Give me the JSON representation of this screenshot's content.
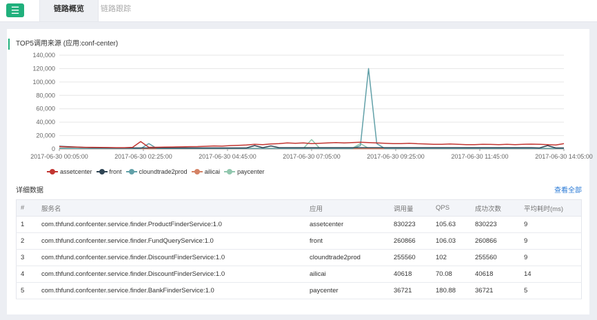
{
  "header": {
    "menu_icon": "☰",
    "tabs": [
      {
        "label": "链路概览",
        "active": true
      },
      {
        "label": "链路跟踪",
        "active": false
      }
    ]
  },
  "accent_color": "#20b07c",
  "link_color": "#2a7ad6",
  "chart_title": "TOP5调用来源 (应用:conf-center)",
  "chart_data": {
    "type": "line",
    "title": "TOP5调用来源 (应用:conf-center)",
    "ylim": [
      0,
      140000
    ],
    "y_ticks": [
      "140,000",
      "120,000",
      "100,000",
      "80,000",
      "60,000",
      "40,000",
      "20,000",
      "0"
    ],
    "x_ticks": [
      "2017-06-30 00:05:00",
      "2017-06-30 02:25:00",
      "2017-06-30 04:45:00",
      "2017-06-30 07:05:00",
      "2017-06-30 09:25:00",
      "2017-06-30 11:45:00",
      "2017-06-30 14:05:00"
    ],
    "grid": true,
    "legend_position": "bottom-left",
    "series": [
      {
        "name": "assetcenter",
        "color": "#c23531",
        "values": [
          3500,
          3000,
          2800,
          2500,
          2500,
          2400,
          2200,
          2000,
          2000,
          2500,
          11000,
          2500,
          2600,
          2800,
          3000,
          3200,
          3500,
          3600,
          4000,
          4500,
          4200,
          5000,
          5500,
          6000,
          7000,
          6500,
          7500,
          8000,
          9000,
          8500,
          9000,
          8000,
          8500,
          9000,
          9500,
          9000,
          9500,
          10000,
          9500,
          9000,
          8500,
          8000,
          8000,
          8500,
          7800,
          7500,
          7000,
          7000,
          7500,
          7000,
          6500,
          6500,
          7000,
          6800,
          6500,
          7000,
          6500,
          7000,
          7200,
          7000,
          6500,
          6000,
          8000
        ]
      },
      {
        "name": "front",
        "color": "#2f4554",
        "values": [
          4000,
          3500,
          3000,
          2500,
          2000,
          1800,
          1600,
          1500,
          1500,
          1500,
          1500,
          1500,
          1500,
          1500,
          1500,
          1500,
          1500,
          1500,
          1500,
          1500,
          1500,
          1500,
          1500,
          1500,
          5000,
          2000,
          4500,
          2000,
          2000,
          2000,
          2000,
          2000,
          2000,
          2000,
          2000,
          2000,
          2000,
          2000,
          2000,
          2000,
          2000,
          2000,
          2000,
          2000,
          2000,
          2000,
          2000,
          2000,
          2000,
          2000,
          2000,
          2000,
          2000,
          2000,
          2000,
          2000,
          2000,
          2000,
          2000,
          1500,
          5000,
          1500,
          1500
        ]
      },
      {
        "name": "cloundtrade2prod",
        "color": "#61a0a8",
        "values": [
          800,
          700,
          700,
          600,
          600,
          600,
          600,
          600,
          600,
          600,
          600,
          8000,
          600,
          600,
          600,
          600,
          600,
          600,
          600,
          600,
          600,
          600,
          600,
          600,
          600,
          600,
          600,
          600,
          600,
          600,
          600,
          600,
          600,
          600,
          600,
          600,
          600,
          5000,
          120000,
          8000,
          600,
          600,
          600,
          600,
          600,
          600,
          600,
          600,
          600,
          600,
          600,
          600,
          600,
          600,
          600,
          600,
          600,
          600,
          600,
          600,
          600,
          600,
          600
        ]
      },
      {
        "name": "ailicai",
        "color": "#d48265",
        "values": [
          500,
          500,
          500,
          500,
          500,
          500,
          500,
          500,
          500,
          500,
          500,
          500,
          500,
          500,
          500,
          500,
          500,
          500,
          500,
          500,
          500,
          500,
          500,
          500,
          500,
          500,
          500,
          500,
          500,
          500,
          500,
          500,
          500,
          500,
          500,
          500,
          500,
          500,
          500,
          500,
          500,
          500,
          500,
          500,
          500,
          500,
          500,
          500,
          500,
          500,
          500,
          500,
          500,
          500,
          500,
          500,
          500,
          500,
          500,
          500,
          500,
          500,
          500
        ]
      },
      {
        "name": "paycenter",
        "color": "#91c7ae",
        "values": [
          1200,
          1100,
          1100,
          1000,
          1000,
          1000,
          1000,
          1000,
          1000,
          1000,
          1000,
          1000,
          1000,
          1000,
          1000,
          1000,
          1000,
          1000,
          1000,
          1000,
          1000,
          1000,
          1000,
          1000,
          1000,
          1000,
          1000,
          1000,
          1000,
          1000,
          1000,
          14000,
          1000,
          1000,
          1000,
          1000,
          1000,
          8000,
          1000,
          1000,
          1000,
          1000,
          1000,
          1000,
          1000,
          1000,
          1000,
          1000,
          1000,
          1000,
          1000,
          1000,
          1000,
          1000,
          1000,
          1000,
          1000,
          1000,
          1000,
          1000,
          1000,
          1000,
          1000
        ]
      }
    ]
  },
  "details": {
    "label": "详细数据",
    "view_all": "查看全部",
    "columns": [
      "#",
      "服务名",
      "应用",
      "调用量",
      "QPS",
      "成功次数",
      "平均耗时(ms)"
    ],
    "rows": [
      [
        "1",
        "com.thfund.confcenter.service.finder.ProductFinderService:1.0",
        "assetcenter",
        "830223",
        "105.63",
        "830223",
        "9"
      ],
      [
        "2",
        "com.thfund.confcenter.service.finder.FundQueryService:1.0",
        "front",
        "260866",
        "106.03",
        "260866",
        "9"
      ],
      [
        "3",
        "com.thfund.confcenter.service.finder.DiscountFinderService:1.0",
        "cloundtrade2prod",
        "255560",
        "102",
        "255560",
        "9"
      ],
      [
        "4",
        "com.thfund.confcenter.service.finder.DiscountFinderService:1.0",
        "ailicai",
        "40618",
        "70.08",
        "40618",
        "14"
      ],
      [
        "5",
        "com.thfund.confcenter.service.finder.BankFinderService:1.0",
        "paycenter",
        "36721",
        "180.88",
        "36721",
        "5"
      ]
    ]
  }
}
